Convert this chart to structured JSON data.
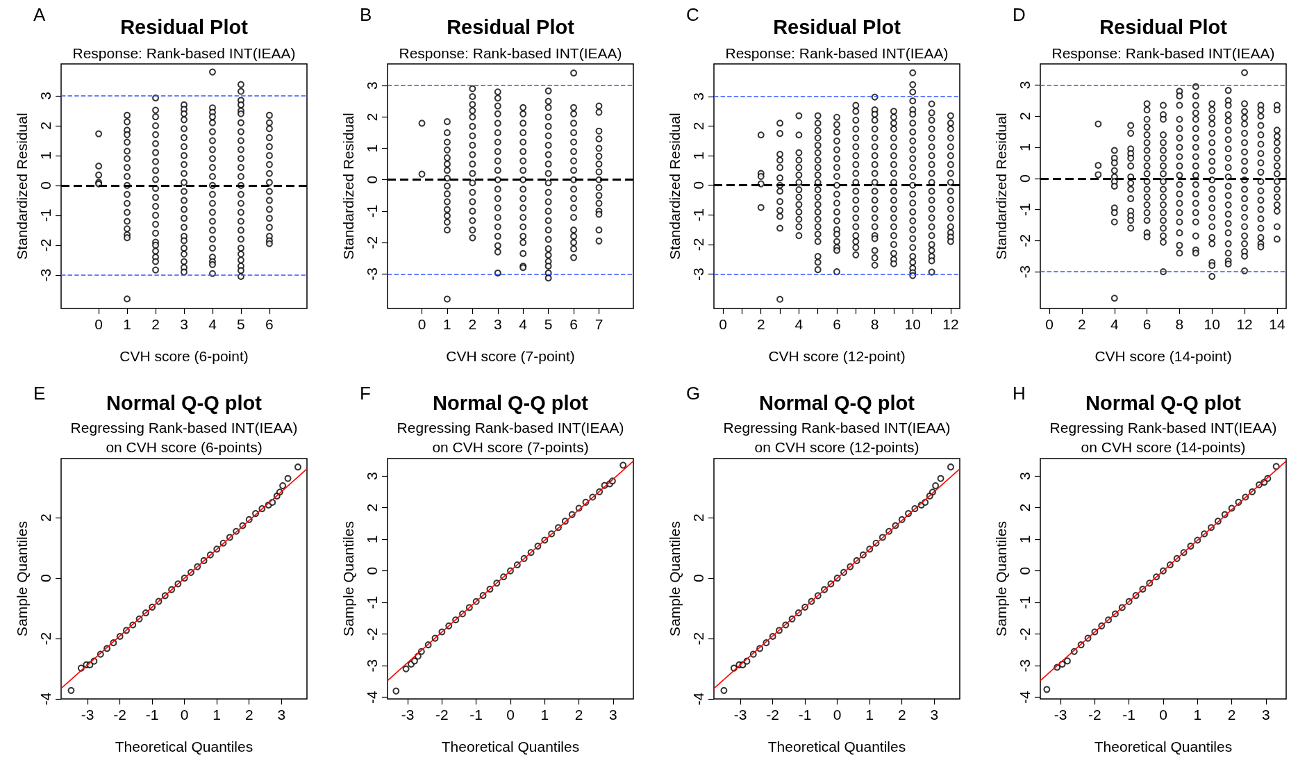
{
  "chart_data": [
    {
      "type": "scatter",
      "annotations": [
        "A"
      ],
      "title": "Residual Plot",
      "subtitle": "Response: Rank-based INT(IEAA)",
      "xlabel": "CVH score (6-point)",
      "ylabel": "Standardized Residual",
      "marker": "circle",
      "xlim": [
        -1.32,
        7.32
      ],
      "xticks": [
        0,
        1,
        2,
        3,
        4,
        5,
        6
      ],
      "ylim": [
        -4.12,
        4.07
      ],
      "yticks": [
        -3,
        -2,
        -1,
        0,
        1,
        2,
        3
      ],
      "ref_lines": [
        {
          "axis": "y",
          "value": 3,
          "color": "#3355ff",
          "line_style": "dashed"
        },
        {
          "axis": "y",
          "value": -3,
          "color": "#3355ff",
          "line_style": "dashed"
        },
        {
          "axis": "y",
          "value": 0,
          "color": "#000000",
          "line_style": "dashed"
        }
      ],
      "series": [
        {
          "color": "#000000",
          "x": [
            0,
            0,
            0,
            0,
            0
          ],
          "values": [
            1.73,
            0.65,
            0.35,
            0.1,
            0.05
          ]
        },
        {
          "color": "#000000",
          "x": [
            1,
            1,
            1,
            1,
            1,
            1,
            1,
            1,
            1,
            1,
            1,
            1,
            1,
            1,
            1,
            1,
            1,
            1
          ],
          "values": [
            2.35,
            2.13,
            1.85,
            1.7,
            1.45,
            1.15,
            0.9,
            0.6,
            0.3,
            0,
            -0.3,
            -0.6,
            -0.9,
            -1.2,
            -1.45,
            -1.65,
            -1.75,
            -3.8
          ]
        },
        {
          "color": "#000000",
          "x": [
            2,
            2,
            2,
            2,
            2,
            2,
            2,
            2,
            2,
            2,
            2,
            2,
            2,
            2,
            2,
            2,
            2,
            2,
            2,
            2,
            2,
            2
          ],
          "values": [
            2.93,
            2.52,
            2.3,
            2.0,
            1.7,
            1.4,
            1.1,
            0.8,
            0.5,
            0.2,
            -0.1,
            -0.4,
            -0.7,
            -1.0,
            -1.3,
            -1.6,
            -1.9,
            -2.0,
            -2.2,
            -2.4,
            -2.55,
            -2.83
          ]
        },
        {
          "color": "#000000",
          "x": [
            3,
            3,
            3,
            3,
            3,
            3,
            3,
            3,
            3,
            3,
            3,
            3,
            3,
            3,
            3,
            3,
            3,
            3,
            3,
            3,
            3,
            3,
            3
          ],
          "values": [
            2.7,
            2.55,
            2.4,
            2.2,
            1.9,
            1.6,
            1.3,
            1.0,
            0.7,
            0.4,
            0.1,
            -0.2,
            -0.5,
            -0.8,
            -1.1,
            -1.4,
            -1.7,
            -1.85,
            -2.1,
            -2.3,
            -2.55,
            -2.75,
            -2.9
          ]
        },
        {
          "color": "#000000",
          "x": [
            4,
            4,
            4,
            4,
            4,
            4,
            4,
            4,
            4,
            4,
            4,
            4,
            4,
            4,
            4,
            4,
            4,
            4,
            4,
            4,
            4,
            4,
            4
          ],
          "values": [
            3.8,
            2.6,
            2.45,
            2.3,
            2.1,
            1.8,
            1.5,
            1.2,
            0.9,
            0.6,
            0.3,
            0,
            -0.3,
            -0.6,
            -0.9,
            -1.2,
            -1.5,
            -1.8,
            -2.1,
            -2.4,
            -2.55,
            -2.65,
            -2.95
          ]
        },
        {
          "color": "#000000",
          "x": [
            5,
            5,
            5,
            5,
            5,
            5,
            5,
            5,
            5,
            5,
            5,
            5,
            5,
            5,
            5,
            5,
            5,
            5,
            5,
            5,
            5,
            5,
            5,
            5,
            5,
            5
          ],
          "values": [
            3.38,
            3.15,
            2.85,
            2.7,
            2.5,
            2.4,
            2.1,
            1.8,
            1.5,
            1.2,
            0.9,
            0.6,
            0.3,
            0,
            -0.3,
            -0.6,
            -0.9,
            -1.2,
            -1.5,
            -1.8,
            -2.1,
            -2.3,
            -2.5,
            -2.7,
            -2.85,
            -3.05
          ]
        },
        {
          "color": "#000000",
          "x": [
            6,
            6,
            6,
            6,
            6,
            6,
            6,
            6,
            6,
            6,
            6,
            6,
            6,
            6,
            6,
            6,
            6
          ],
          "values": [
            2.35,
            2.1,
            1.9,
            1.6,
            1.3,
            1.0,
            0.7,
            0.4,
            0.1,
            -0.2,
            -0.5,
            -0.8,
            -1.1,
            -1.4,
            -1.7,
            -1.85,
            -1.95
          ]
        }
      ]
    },
    {
      "type": "scatter",
      "annotations": [
        "B"
      ],
      "title": "Residual Plot",
      "subtitle": "Response: Rank-based INT(IEAA)",
      "xlabel": "CVH score (7-point)",
      "ylabel": "Standardized Residual",
      "marker": "circle",
      "xlim": [
        -1.36,
        8.36
      ],
      "xticks": [
        0,
        1,
        2,
        3,
        4,
        5,
        6,
        7
      ],
      "ylim": [
        -4.1,
        3.69
      ],
      "yticks": [
        -3,
        -2,
        -1,
        0,
        1,
        2,
        3
      ],
      "ref_lines": [
        {
          "axis": "y",
          "value": 3,
          "color": "#3355ff",
          "line_style": "dashed"
        },
        {
          "axis": "y",
          "value": -3,
          "color": "#3355ff",
          "line_style": "dashed"
        },
        {
          "axis": "y",
          "value": 0,
          "color": "#000000",
          "line_style": "dashed"
        }
      ],
      "series": [
        {
          "color": "#000000",
          "x": [
            0,
            0
          ],
          "values": [
            1.8,
            0.18
          ]
        },
        {
          "color": "#000000",
          "x": [
            1,
            1,
            1,
            1,
            1,
            1,
            1,
            1,
            1,
            1,
            1,
            1,
            1,
            1,
            1,
            1
          ],
          "values": [
            1.85,
            1.5,
            1.2,
            0.95,
            0.7,
            0.5,
            0.3,
            0.05,
            -0.2,
            -0.45,
            -0.7,
            -0.95,
            -1.15,
            -1.35,
            -1.6,
            -3.8
          ]
        },
        {
          "color": "#000000",
          "x": [
            2,
            2,
            2,
            2,
            2,
            2,
            2,
            2,
            2,
            2,
            2,
            2,
            2,
            2,
            2,
            2,
            2,
            2
          ],
          "values": [
            2.9,
            2.65,
            2.4,
            2.2,
            2.0,
            1.7,
            1.4,
            1.1,
            0.8,
            0.5,
            0.2,
            -0.1,
            -0.4,
            -0.7,
            -1.0,
            -1.3,
            -1.6,
            -1.85
          ]
        },
        {
          "color": "#000000",
          "x": [
            3,
            3,
            3,
            3,
            3,
            3,
            3,
            3,
            3,
            3,
            3,
            3,
            3,
            3,
            3,
            3,
            3,
            3,
            3,
            3
          ],
          "values": [
            2.8,
            2.6,
            2.35,
            2.1,
            1.8,
            1.5,
            1.2,
            0.9,
            0.6,
            0.3,
            0,
            -0.3,
            -0.6,
            -0.9,
            -1.2,
            -1.5,
            -1.8,
            -2.1,
            -2.3,
            -2.97
          ]
        },
        {
          "color": "#000000",
          "x": [
            4,
            4,
            4,
            4,
            4,
            4,
            4,
            4,
            4,
            4,
            4,
            4,
            4,
            4,
            4,
            4,
            4,
            4,
            4
          ],
          "values": [
            2.3,
            2.1,
            1.8,
            1.5,
            1.2,
            0.9,
            0.6,
            0.3,
            0,
            -0.3,
            -0.6,
            -0.9,
            -1.2,
            -1.5,
            -1.8,
            -2.0,
            -2.35,
            -2.75,
            -2.8
          ]
        },
        {
          "color": "#000000",
          "x": [
            5,
            5,
            5,
            5,
            5,
            5,
            5,
            5,
            5,
            5,
            5,
            5,
            5,
            5,
            5,
            5,
            5,
            5,
            5,
            5,
            5,
            5,
            5
          ],
          "values": [
            2.83,
            2.5,
            2.3,
            2.0,
            1.7,
            1.4,
            1.1,
            0.8,
            0.5,
            0.2,
            -0.1,
            -0.4,
            -0.7,
            -1.0,
            -1.3,
            -1.6,
            -1.9,
            -2.2,
            -2.4,
            -2.6,
            -2.75,
            -2.97,
            -3.13
          ]
        },
        {
          "color": "#000000",
          "x": [
            6,
            6,
            6,
            6,
            6,
            6,
            6,
            6,
            6,
            6,
            6,
            6,
            6,
            6,
            6,
            6,
            6,
            6,
            6
          ],
          "values": [
            3.4,
            2.3,
            2.1,
            1.8,
            1.5,
            1.2,
            0.9,
            0.6,
            0.3,
            0,
            -0.3,
            -0.6,
            -0.9,
            -1.2,
            -1.6,
            -1.8,
            -2.0,
            -2.2,
            -2.48
          ]
        },
        {
          "color": "#000000",
          "x": [
            7,
            7,
            7,
            7,
            7,
            7,
            7,
            7,
            7,
            7,
            7,
            7,
            7,
            7,
            7,
            7
          ],
          "values": [
            2.35,
            2.15,
            1.55,
            1.3,
            1.0,
            0.75,
            0.5,
            0.25,
            0,
            -0.25,
            -0.5,
            -0.75,
            -1.0,
            -1.1,
            -1.6,
            -1.95
          ]
        }
      ]
    },
    {
      "type": "scatter",
      "annotations": [
        "C"
      ],
      "title": "Residual Plot",
      "subtitle": "Response: Rank-based INT(IEAA)",
      "xlabel": "CVH score (12-point)",
      "ylabel": "Standardized Residual",
      "marker": "circle",
      "xlim": [
        -0.48,
        12.48
      ],
      "xticks": [
        0,
        {
          "value": 1,
          "label": null
        },
        2,
        {
          "value": 3,
          "label": null
        },
        4,
        {
          "value": 5,
          "label": null
        },
        6,
        {
          "value": 7,
          "label": null
        },
        8,
        {
          "value": 9,
          "label": null
        },
        10,
        {
          "value": 11,
          "label": null
        },
        12
      ],
      "ylim": [
        -4.16,
        4.1
      ],
      "yticks": [
        -3,
        -2,
        -1,
        0,
        1,
        2,
        3
      ],
      "ref_lines": [
        {
          "axis": "y",
          "value": 3,
          "color": "#3355ff",
          "line_style": "dashed"
        },
        {
          "axis": "y",
          "value": -3,
          "color": "#3355ff",
          "line_style": "dashed"
        },
        {
          "axis": "y",
          "value": 0,
          "color": "#000000",
          "line_style": "dashed"
        }
      ],
      "series": [
        {
          "color": "#000000",
          "x": [
            2,
            2,
            2,
            2,
            2
          ],
          "values": [
            1.7,
            0.4,
            0.3,
            0.05,
            -0.75
          ]
        },
        {
          "color": "#000000",
          "x": [
            3,
            3,
            3,
            3,
            3,
            3,
            3,
            3,
            3,
            3,
            3,
            3,
            3
          ],
          "values": [
            2.1,
            1.75,
            1.05,
            0.85,
            0.6,
            0.25,
            0,
            -0.2,
            -0.55,
            -0.85,
            -1.05,
            -1.45,
            -3.85
          ]
        },
        {
          "color": "#000000",
          "x": [
            4,
            4,
            4,
            4,
            4,
            4,
            4,
            4,
            4,
            4,
            4,
            4,
            4,
            4
          ],
          "values": [
            2.35,
            1.7,
            1.1,
            0.85,
            0.6,
            0.35,
            0.1,
            -0.15,
            -0.4,
            -0.65,
            -0.9,
            -1.15,
            -1.4,
            -1.7
          ]
        },
        {
          "color": "#000000",
          "x": [
            5,
            5,
            5,
            5,
            5,
            5,
            5,
            5,
            5,
            5,
            5,
            5,
            5,
            5,
            5,
            5,
            5,
            5,
            5,
            5,
            5
          ],
          "values": [
            2.35,
            2.1,
            1.85,
            1.6,
            1.35,
            1.1,
            0.85,
            0.6,
            0.35,
            0.1,
            -0.15,
            -0.4,
            -0.65,
            -0.9,
            -1.15,
            -1.4,
            -1.65,
            -1.9,
            -2.4,
            -2.6,
            -2.85
          ]
        },
        {
          "color": "#000000",
          "x": [
            6,
            6,
            6,
            6,
            6,
            6,
            6,
            6,
            6,
            6,
            6,
            6,
            6,
            6,
            6,
            6,
            6,
            6,
            6
          ],
          "values": [
            2.3,
            2.05,
            1.8,
            1.5,
            1.2,
            0.9,
            0.6,
            0.3,
            0,
            -0.3,
            -0.6,
            -0.9,
            -1.2,
            -1.5,
            -1.65,
            -1.9,
            -2.1,
            -2.2,
            -2.92
          ]
        },
        {
          "color": "#000000",
          "x": [
            7,
            7,
            7,
            7,
            7,
            7,
            7,
            7,
            7,
            7,
            7,
            7,
            7,
            7,
            7,
            7,
            7,
            7,
            7
          ],
          "values": [
            2.7,
            2.5,
            2.2,
            1.9,
            1.6,
            1.3,
            1.0,
            0.7,
            0.4,
            0.1,
            -0.2,
            -0.5,
            -0.8,
            -1.1,
            -1.4,
            -1.7,
            -1.9,
            -2.1,
            -2.35
          ]
        },
        {
          "color": "#000000",
          "x": [
            8,
            8,
            8,
            8,
            8,
            8,
            8,
            8,
            8,
            8,
            8,
            8,
            8,
            8,
            8,
            8,
            8,
            8,
            8,
            8,
            8
          ],
          "values": [
            2.98,
            2.55,
            2.4,
            2.2,
            1.9,
            1.6,
            1.3,
            1.0,
            0.7,
            0.4,
            0.1,
            -0.2,
            -0.5,
            -0.8,
            -1.1,
            -1.4,
            -1.7,
            -1.8,
            -2.2,
            -2.45,
            -2.7
          ]
        },
        {
          "color": "#000000",
          "x": [
            9,
            9,
            9,
            9,
            9,
            9,
            9,
            9,
            9,
            9,
            9,
            9,
            9,
            9,
            9,
            9,
            9,
            9,
            9,
            9
          ],
          "values": [
            2.5,
            2.3,
            2.1,
            1.9,
            1.6,
            1.3,
            1.0,
            0.7,
            0.4,
            0.1,
            -0.2,
            -0.5,
            -0.8,
            -1.1,
            -1.4,
            -1.7,
            -2.0,
            -2.3,
            -2.5,
            -2.65
          ]
        },
        {
          "color": "#000000",
          "x": [
            10,
            10,
            10,
            10,
            10,
            10,
            10,
            10,
            10,
            10,
            10,
            10,
            10,
            10,
            10,
            10,
            10,
            10,
            10,
            10,
            10,
            10,
            10,
            10,
            10,
            10
          ],
          "values": [
            3.8,
            3.4,
            3.15,
            2.85,
            2.55,
            2.4,
            2.1,
            1.8,
            1.5,
            1.2,
            0.9,
            0.6,
            0.3,
            0,
            -0.3,
            -0.6,
            -0.9,
            -1.2,
            -1.5,
            -1.8,
            -2.1,
            -2.4,
            -2.6,
            -2.8,
            -2.95,
            -3.05
          ]
        },
        {
          "color": "#000000",
          "x": [
            11,
            11,
            11,
            11,
            11,
            11,
            11,
            11,
            11,
            11,
            11,
            11,
            11,
            11,
            11,
            11,
            11,
            11,
            11,
            11,
            11
          ],
          "values": [
            2.75,
            2.45,
            2.2,
            1.9,
            1.6,
            1.3,
            1.0,
            0.7,
            0.4,
            0.1,
            -0.2,
            -0.5,
            -0.8,
            -1.1,
            -1.4,
            -1.7,
            -2.0,
            -2.2,
            -2.4,
            -2.55,
            -2.93
          ]
        },
        {
          "color": "#000000",
          "x": [
            12,
            12,
            12,
            12,
            12,
            12,
            12,
            12,
            12,
            12,
            12,
            12,
            12,
            12,
            12,
            12,
            12
          ],
          "values": [
            2.35,
            2.1,
            1.9,
            1.6,
            1.3,
            1.0,
            0.7,
            0.4,
            0.1,
            -0.2,
            -0.5,
            -0.8,
            -1.1,
            -1.4,
            -1.6,
            -1.75,
            -1.9
          ]
        }
      ]
    },
    {
      "type": "scatter",
      "annotations": [
        "D"
      ],
      "title": "Residual Plot",
      "subtitle": "Response: Rank-based INT(IEAA)",
      "xlabel": "CVH score (14-point)",
      "ylabel": "Standardized Residual",
      "marker": "circle",
      "xlim": [
        -0.56,
        14.56
      ],
      "xticks": [
        0,
        2,
        4,
        6,
        8,
        10,
        12,
        14
      ],
      "ylim": [
        -4.18,
        3.68
      ],
      "yticks": [
        -3,
        -2,
        -1,
        0,
        1,
        2,
        3
      ],
      "ref_lines": [
        {
          "axis": "y",
          "value": 3,
          "color": "#3355ff",
          "line_style": "dashed"
        },
        {
          "axis": "y",
          "value": -3,
          "color": "#3355ff",
          "line_style": "dashed"
        },
        {
          "axis": "y",
          "value": 0,
          "color": "#000000",
          "line_style": "dashed"
        }
      ],
      "series": [
        {
          "color": "#000000",
          "x": [
            3,
            3,
            3
          ],
          "values": [
            1.75,
            0.42,
            0.12
          ]
        },
        {
          "color": "#000000",
          "x": [
            4,
            4,
            4,
            4,
            4,
            4,
            4,
            4,
            4,
            4,
            4
          ],
          "values": [
            0.9,
            0.65,
            0.5,
            0.25,
            0.05,
            -0.1,
            -0.25,
            -0.95,
            -1.1,
            -1.4,
            -3.85
          ]
        },
        {
          "color": "#000000",
          "x": [
            5,
            5,
            5,
            5,
            5,
            5,
            5,
            5,
            5,
            5,
            5,
            5,
            5,
            5
          ],
          "values": [
            1.7,
            1.45,
            0.95,
            0.8,
            0.65,
            0.4,
            0.05,
            -0.15,
            -0.35,
            -0.65,
            -1.05,
            -1.2,
            -1.35,
            -1.6
          ]
        },
        {
          "color": "#000000",
          "x": [
            6,
            6,
            6,
            6,
            6,
            6,
            6,
            6,
            6,
            6,
            6,
            6,
            6,
            6,
            6,
            6,
            6,
            6
          ],
          "values": [
            2.4,
            2.2,
            1.9,
            1.65,
            1.4,
            1.15,
            0.9,
            0.65,
            0.4,
            0.15,
            -0.1,
            -0.35,
            -0.6,
            -0.85,
            -1.1,
            -1.35,
            -1.75,
            -1.88
          ]
        },
        {
          "color": "#000000",
          "x": [
            7,
            7,
            7,
            7,
            7,
            7,
            7,
            7,
            7,
            7,
            7,
            7,
            7,
            7,
            7,
            7,
            7,
            7,
            7
          ],
          "values": [
            2.35,
            2.05,
            1.9,
            1.4,
            1.15,
            0.9,
            0.65,
            0.4,
            0.15,
            -0.1,
            -0.35,
            -0.6,
            -0.85,
            -1.1,
            -1.35,
            -1.6,
            -1.85,
            -2.05,
            -3.0
          ]
        },
        {
          "color": "#000000",
          "x": [
            8,
            8,
            8,
            8,
            8,
            8,
            8,
            8,
            8,
            8,
            8,
            8,
            8,
            8,
            8,
            8,
            8,
            8
          ],
          "values": [
            2.8,
            2.65,
            2.35,
            1.9,
            1.6,
            1.3,
            1.0,
            0.7,
            0.4,
            0.1,
            -0.2,
            -0.5,
            -0.8,
            -1.1,
            -1.4,
            -1.75,
            -2.15,
            -2.4
          ]
        },
        {
          "color": "#000000",
          "x": [
            9,
            9,
            9,
            9,
            9,
            9,
            9,
            9,
            9,
            9,
            9,
            9,
            9,
            9,
            9,
            9,
            9,
            9,
            9
          ],
          "values": [
            2.95,
            2.65,
            2.35,
            2.1,
            1.9,
            1.6,
            1.3,
            1.0,
            0.7,
            0.4,
            0.1,
            -0.2,
            -0.5,
            -0.8,
            -1.1,
            -1.4,
            -1.85,
            -2.3,
            -2.4
          ]
        },
        {
          "color": "#000000",
          "x": [
            10,
            10,
            10,
            10,
            10,
            10,
            10,
            10,
            10,
            10,
            10,
            10,
            10,
            10,
            10,
            10,
            10,
            10,
            10,
            10
          ],
          "values": [
            2.4,
            2.2,
            1.95,
            1.75,
            1.45,
            1.15,
            0.85,
            0.55,
            0.25,
            -0.05,
            -0.35,
            -0.65,
            -0.95,
            -1.25,
            -1.55,
            -1.9,
            -2.1,
            -2.7,
            -2.8,
            -3.15
          ]
        },
        {
          "color": "#000000",
          "x": [
            11,
            11,
            11,
            11,
            11,
            11,
            11,
            11,
            11,
            11,
            11,
            11,
            11,
            11,
            11,
            11,
            11,
            11,
            11,
            11,
            11
          ],
          "values": [
            2.83,
            2.5,
            2.35,
            2.05,
            1.85,
            1.55,
            1.25,
            0.95,
            0.65,
            0.35,
            0.05,
            -0.25,
            -0.55,
            -0.85,
            -1.15,
            -1.45,
            -1.75,
            -2.1,
            -2.4,
            -2.65,
            -2.75
          ]
        },
        {
          "color": "#000000",
          "x": [
            12,
            12,
            12,
            12,
            12,
            12,
            12,
            12,
            12,
            12,
            12,
            12,
            12,
            12,
            12,
            12,
            12,
            12,
            12,
            12,
            12
          ],
          "values": [
            3.4,
            2.4,
            2.15,
            1.95,
            1.75,
            1.45,
            1.15,
            0.85,
            0.55,
            0.25,
            -0.05,
            -0.35,
            -0.65,
            -0.95,
            -1.25,
            -1.55,
            -1.85,
            -2.1,
            -2.35,
            -2.5,
            -2.97
          ]
        },
        {
          "color": "#000000",
          "x": [
            13,
            13,
            13,
            13,
            13,
            13,
            13,
            13,
            13,
            13,
            13,
            13,
            13,
            13,
            13,
            13,
            13,
            13
          ],
          "values": [
            2.35,
            2.2,
            2.0,
            1.7,
            1.4,
            1.1,
            0.8,
            0.5,
            0.2,
            -0.1,
            -0.4,
            -0.7,
            -1.0,
            -1.3,
            -1.6,
            -1.9,
            -2.1,
            -2.2
          ]
        },
        {
          "color": "#000000",
          "x": [
            14,
            14,
            14,
            14,
            14,
            14,
            14,
            14,
            14,
            14,
            14,
            14,
            14,
            14,
            14,
            14
          ],
          "values": [
            2.35,
            2.2,
            1.55,
            1.35,
            1.15,
            0.9,
            0.65,
            0.4,
            0.15,
            -0.1,
            -0.35,
            -0.6,
            -0.85,
            -1.05,
            -1.55,
            -1.95
          ]
        }
      ]
    },
    {
      "type": "scatter",
      "annotations": [
        "E"
      ],
      "title": "Normal Q-Q plot",
      "subtitle": "Regressing Rank-based INT(IEAA)\non CVH score (6-points)",
      "xlabel": "Theoretical Quantiles",
      "ylabel": "Sample Quantiles",
      "marker": "circle",
      "xlim": [
        -3.82,
        3.79
      ],
      "xticks": [
        -3,
        -2,
        -1,
        0,
        1,
        2,
        3
      ],
      "ylim": [
        -4,
        3.96
      ],
      "yticks": [
        -4,
        -2,
        0,
        2
      ],
      "series": [
        {
          "color": "#000000",
          "x": [
            -3.51,
            -3.2,
            -3.04,
            -2.93,
            -2.8,
            -2.6,
            -2.4,
            -2.2,
            -2.0,
            -1.8,
            -1.6,
            -1.4,
            -1.2,
            -1.0,
            -0.8,
            -0.6,
            -0.4,
            -0.2,
            0,
            0.2,
            0.4,
            0.6,
            0.8,
            1.0,
            1.2,
            1.4,
            1.6,
            1.8,
            2.0,
            2.2,
            2.4,
            2.6,
            2.72,
            2.86,
            2.95,
            3.04,
            3.2,
            3.51
          ],
          "values": [
            -3.72,
            -2.98,
            -2.87,
            -2.87,
            -2.75,
            -2.52,
            -2.33,
            -2.14,
            -1.93,
            -1.73,
            -1.55,
            -1.35,
            -1.15,
            -0.96,
            -0.77,
            -0.58,
            -0.38,
            -0.19,
            0,
            0.19,
            0.38,
            0.58,
            0.77,
            0.96,
            1.16,
            1.35,
            1.55,
            1.74,
            1.94,
            2.14,
            2.3,
            2.42,
            2.51,
            2.72,
            2.85,
            3.06,
            3.3,
            3.68
          ]
        },
        {
          "type": "line",
          "marker": "none",
          "color": "#ff0000",
          "x": [
            -3.82,
            3.79
          ],
          "values": [
            -3.65,
            3.62
          ]
        }
      ]
    },
    {
      "type": "scatter",
      "annotations": [
        "F"
      ],
      "title": "Normal Q-Q plot",
      "subtitle": "Regressing Rank-based INT(IEAA)\non CVH score (7-points)",
      "xlabel": "Theoretical Quantiles",
      "ylabel": "Sample Quantiles",
      "marker": "circle",
      "xlim": [
        -3.59,
        3.59
      ],
      "xticks": [
        -3,
        -2,
        -1,
        0,
        1,
        2,
        3
      ],
      "ylim": [
        -4.05,
        3.55
      ],
      "yticks": [
        -4,
        -3,
        -2,
        -1,
        0,
        1,
        2,
        3
      ],
      "series": [
        {
          "color": "#000000",
          "x": [
            -3.34,
            -3.05,
            -2.9,
            -2.8,
            -2.7,
            -2.6,
            -2.4,
            -2.2,
            -2.0,
            -1.8,
            -1.6,
            -1.4,
            -1.2,
            -1.0,
            -0.8,
            -0.6,
            -0.4,
            -0.2,
            0,
            0.2,
            0.4,
            0.6,
            0.8,
            1.0,
            1.2,
            1.4,
            1.6,
            1.8,
            2.0,
            2.2,
            2.4,
            2.6,
            2.75,
            2.9,
            2.98,
            3.29
          ],
          "values": [
            -3.8,
            -3.1,
            -2.95,
            -2.85,
            -2.7,
            -2.55,
            -2.34,
            -2.13,
            -1.93,
            -1.74,
            -1.55,
            -1.36,
            -1.16,
            -0.97,
            -0.78,
            -0.58,
            -0.39,
            -0.19,
            0,
            0.19,
            0.39,
            0.58,
            0.78,
            0.97,
            1.17,
            1.37,
            1.57,
            1.78,
            1.98,
            2.17,
            2.33,
            2.5,
            2.7,
            2.75,
            2.84,
            3.34
          ]
        },
        {
          "type": "line",
          "marker": "none",
          "color": "#ff0000",
          "x": [
            -3.59,
            3.59
          ],
          "values": [
            -3.47,
            3.47
          ]
        }
      ]
    },
    {
      "type": "scatter",
      "annotations": [
        "G"
      ],
      "title": "Normal Q-Q plot",
      "subtitle": "Regressing Rank-based INT(IEAA)\non CVH score (12-points)",
      "xlabel": "Theoretical Quantiles",
      "ylabel": "Sample Quantiles",
      "marker": "circle",
      "xlim": [
        -3.82,
        3.79
      ],
      "xticks": [
        -3,
        -2,
        -1,
        0,
        1,
        2,
        3
      ],
      "ylim": [
        -4,
        3.96
      ],
      "yticks": [
        -4,
        -2,
        0,
        2
      ],
      "series": [
        {
          "color": "#000000",
          "x": [
            -3.51,
            -3.2,
            -3.04,
            -2.93,
            -2.8,
            -2.6,
            -2.4,
            -2.2,
            -2.0,
            -1.8,
            -1.6,
            -1.4,
            -1.2,
            -1.0,
            -0.8,
            -0.6,
            -0.4,
            -0.2,
            0,
            0.2,
            0.4,
            0.6,
            0.8,
            1.0,
            1.2,
            1.4,
            1.6,
            1.8,
            2.0,
            2.2,
            2.4,
            2.6,
            2.72,
            2.86,
            2.95,
            3.04,
            3.2,
            3.51
          ],
          "values": [
            -3.72,
            -2.98,
            -2.87,
            -2.87,
            -2.75,
            -2.52,
            -2.33,
            -2.14,
            -1.93,
            -1.73,
            -1.55,
            -1.35,
            -1.15,
            -0.96,
            -0.77,
            -0.58,
            -0.38,
            -0.19,
            0,
            0.19,
            0.38,
            0.58,
            0.77,
            0.96,
            1.16,
            1.35,
            1.55,
            1.74,
            1.94,
            2.14,
            2.3,
            2.42,
            2.51,
            2.72,
            2.85,
            3.06,
            3.3,
            3.68
          ]
        },
        {
          "type": "line",
          "marker": "none",
          "color": "#ff0000",
          "x": [
            -3.82,
            3.79
          ],
          "values": [
            -3.65,
            3.62
          ]
        }
      ]
    },
    {
      "type": "scatter",
      "annotations": [
        "H"
      ],
      "title": "Normal Q-Q plot",
      "subtitle": "Regressing Rank-based INT(IEAA)\non CVH score (14-points)",
      "xlabel": "Theoretical Quantiles",
      "ylabel": "Sample Quantiles",
      "marker": "circle",
      "xlim": [
        -3.59,
        3.59
      ],
      "xticks": [
        -3,
        -2,
        -1,
        0,
        1,
        2,
        3
      ],
      "ylim": [
        -4.05,
        3.55
      ],
      "yticks": [
        -4,
        -3,
        -2,
        -1,
        0,
        1,
        2,
        3
      ],
      "series": [
        {
          "color": "#000000",
          "x": [
            -3.4,
            -3.1,
            -2.95,
            -2.8,
            -2.6,
            -2.4,
            -2.2,
            -2.0,
            -1.8,
            -1.6,
            -1.4,
            -1.2,
            -1.0,
            -0.8,
            -0.6,
            -0.4,
            -0.2,
            0,
            0.2,
            0.4,
            0.6,
            0.8,
            1.0,
            1.2,
            1.4,
            1.6,
            1.8,
            2.0,
            2.2,
            2.4,
            2.6,
            2.8,
            2.95,
            3.05,
            3.3
          ],
          "values": [
            -3.75,
            -3.05,
            -2.95,
            -2.85,
            -2.55,
            -2.34,
            -2.13,
            -1.93,
            -1.74,
            -1.55,
            -1.36,
            -1.16,
            -0.97,
            -0.78,
            -0.58,
            -0.39,
            -0.19,
            0,
            0.19,
            0.39,
            0.58,
            0.78,
            0.97,
            1.17,
            1.37,
            1.57,
            1.78,
            1.98,
            2.17,
            2.33,
            2.5,
            2.72,
            2.8,
            2.92,
            3.3
          ]
        },
        {
          "type": "line",
          "marker": "none",
          "color": "#ff0000",
          "x": [
            -3.59,
            3.59
          ],
          "values": [
            -3.47,
            3.47
          ]
        }
      ]
    }
  ]
}
